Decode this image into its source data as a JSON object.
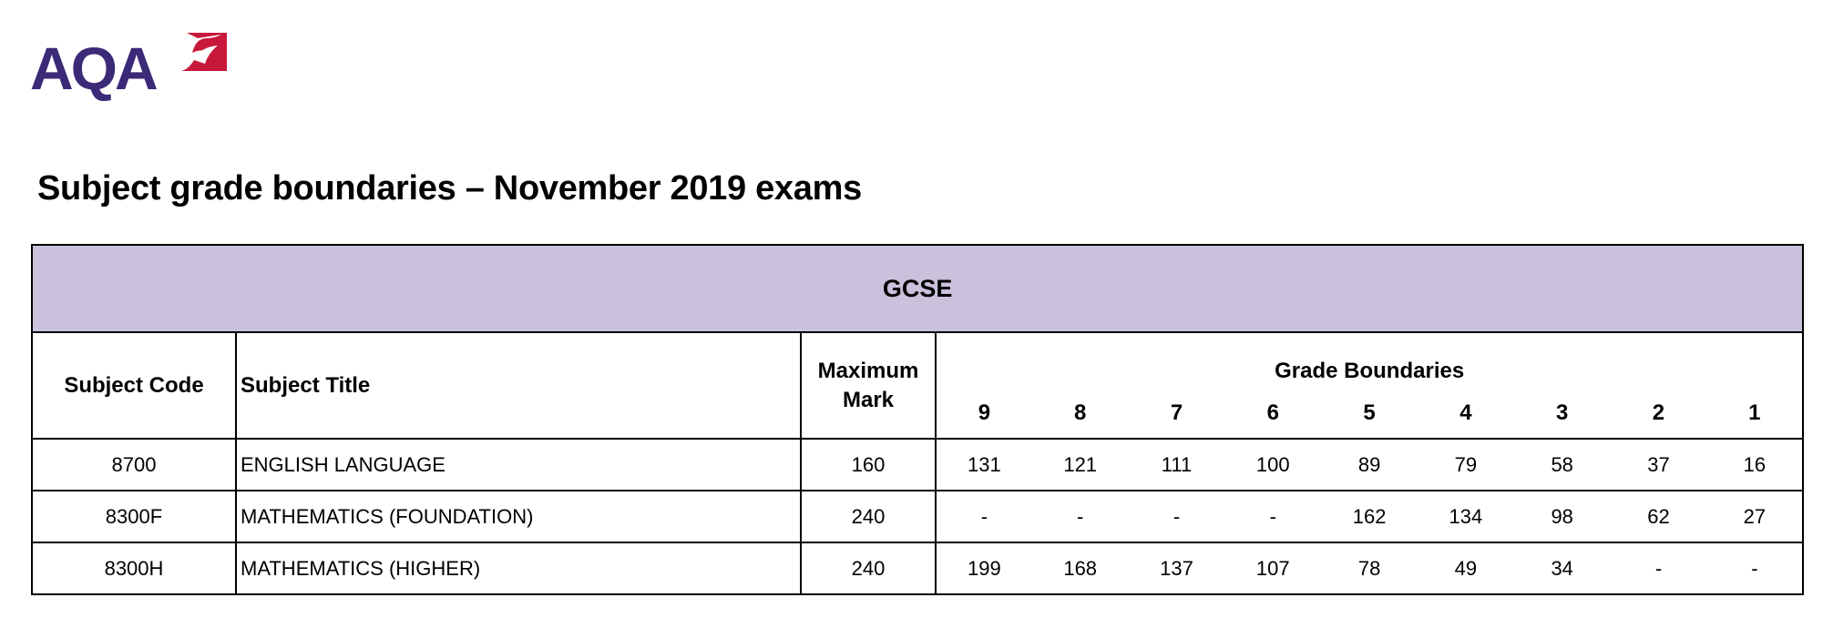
{
  "logo": {
    "text": "AQA",
    "colors": {
      "letters": "#3b2a78",
      "mark": "#c8193c"
    }
  },
  "title": "Subject grade boundaries – November 2019 exams",
  "table": {
    "band": "GCSE",
    "band_color": "#cbc1dc",
    "headers": {
      "subject_code": "Subject Code",
      "subject_title": "Subject Title",
      "maximum_mark": "Maximum Mark",
      "grade_boundaries": "Grade Boundaries",
      "grades": [
        "9",
        "8",
        "7",
        "6",
        "5",
        "4",
        "3",
        "2",
        "1"
      ]
    },
    "rows": [
      {
        "code": "8700",
        "title": "ENGLISH LANGUAGE",
        "max": "160",
        "grades": [
          "131",
          "121",
          "111",
          "100",
          "89",
          "79",
          "58",
          "37",
          "16"
        ]
      },
      {
        "code": "8300F",
        "title": "MATHEMATICS (FOUNDATION)",
        "max": "240",
        "grades": [
          "-",
          "-",
          "-",
          "-",
          "162",
          "134",
          "98",
          "62",
          "27"
        ]
      },
      {
        "code": "8300H",
        "title": "MATHEMATICS (HIGHER)",
        "max": "240",
        "grades": [
          "199",
          "168",
          "137",
          "107",
          "78",
          "49",
          "34",
          "-",
          "-"
        ]
      }
    ]
  }
}
